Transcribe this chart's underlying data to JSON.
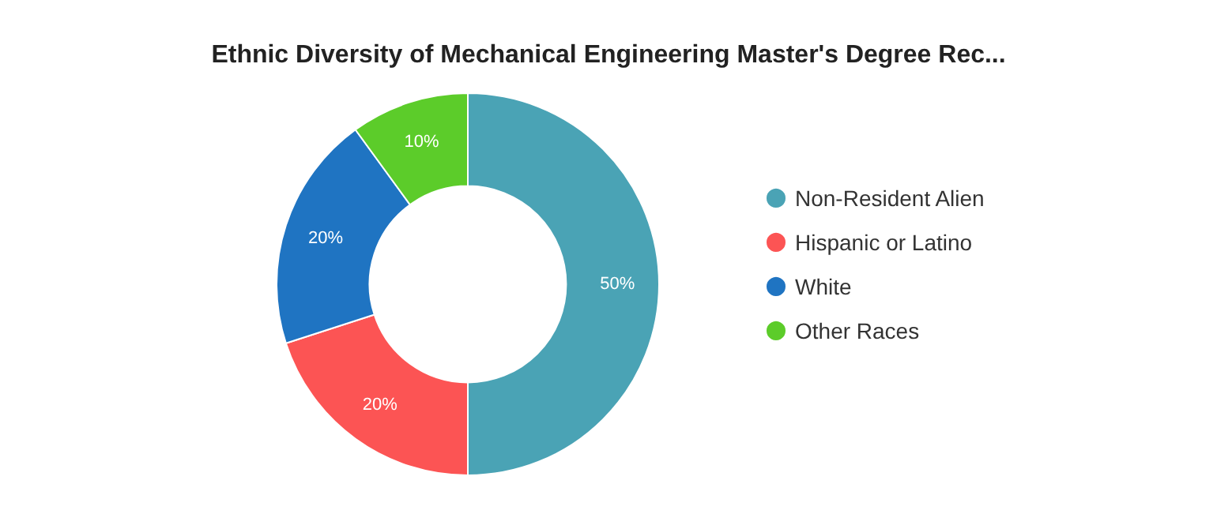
{
  "chart_data": {
    "type": "donut",
    "title": "Ethnic Diversity of Mechanical Engineering Master's Degree Rec...",
    "categories": [
      "Non-Resident Alien",
      "Hispanic or Latino",
      "White",
      "Other Races"
    ],
    "values": [
      50,
      20,
      20,
      10
    ],
    "colors": [
      "#4aa3b5",
      "#fc5454",
      "#1f74c2",
      "#5ccc2a"
    ],
    "value_labels": [
      "50%",
      "20%",
      "20%",
      "10%"
    ],
    "legend": "right"
  }
}
